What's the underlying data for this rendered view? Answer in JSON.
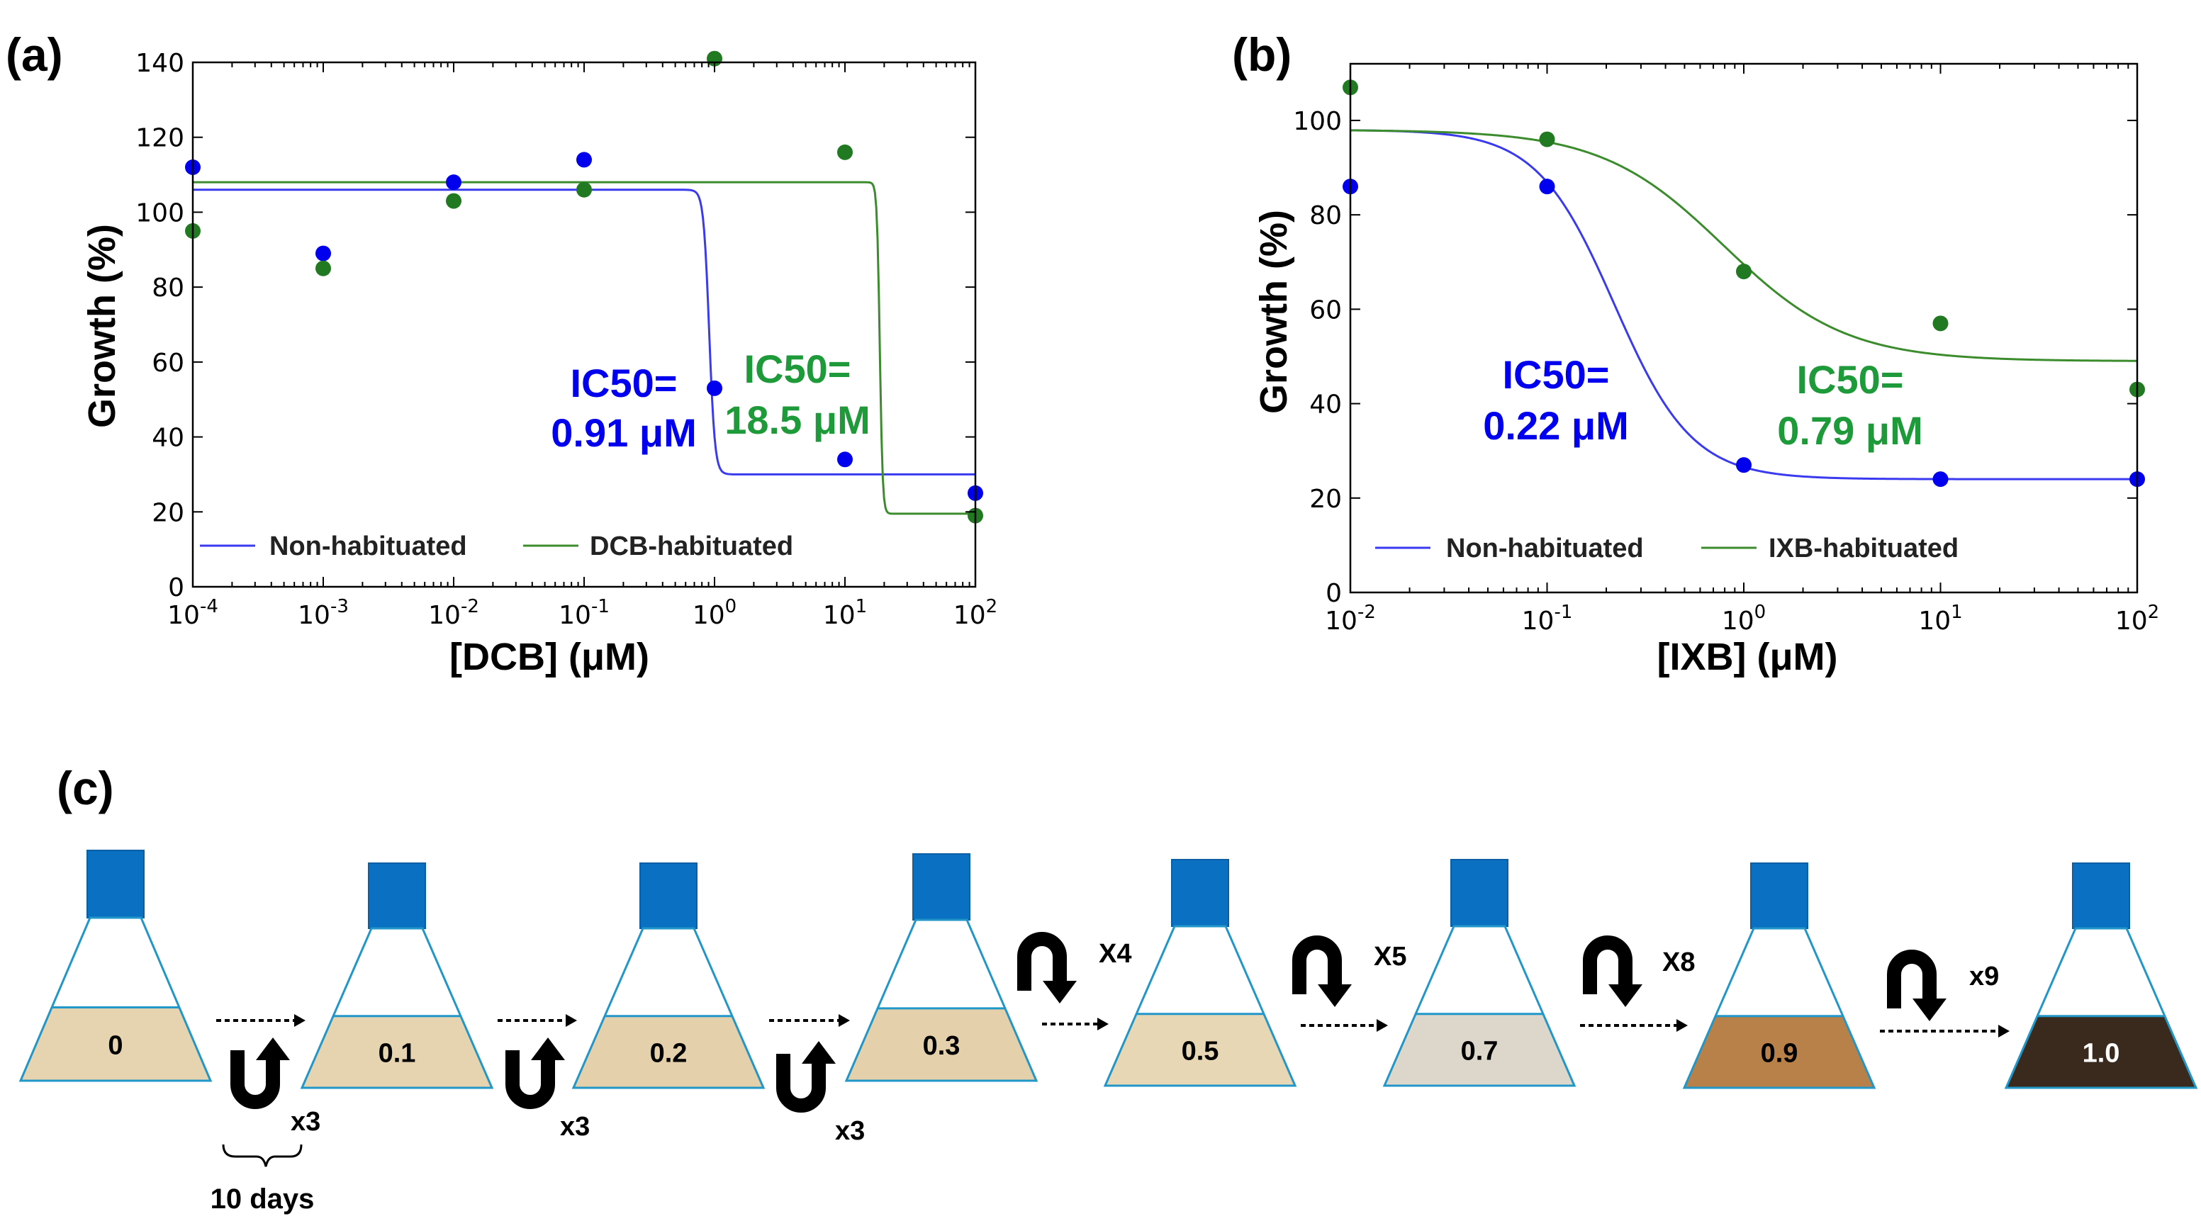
{
  "colors": {
    "blue": "#0000ee",
    "blue_line": "#3a3af0",
    "green": "#1f9a3a",
    "green_point": "#217a21",
    "green_line": "#3c8c2e",
    "flask_cap": "#0a70c2",
    "flask_outline": "#2196c8"
  },
  "panel_a": {
    "label": "(a)",
    "ylabel": "Growth (%)",
    "xlabel": "[DCB] (μM)",
    "ic50_blue": {
      "line1": "IC50=",
      "line2": "0.91 μM"
    },
    "ic50_green": {
      "line1": "IC50=",
      "line2": "18.5 μM"
    },
    "legend": [
      "Non-habituated",
      "DCB-habituated"
    ]
  },
  "panel_b": {
    "label": "(b)",
    "ylabel": "Growth (%)",
    "xlabel": "[IXB] (μM)",
    "ic50_blue": {
      "line1": "IC50=",
      "line2": "0.22 μM"
    },
    "ic50_green": {
      "line1": "IC50=",
      "line2": "0.79 μM"
    },
    "legend": [
      "Non-habituated",
      "IXB-habituated"
    ]
  },
  "chart_data": [
    {
      "type": "scatter",
      "title": "",
      "xlabel": "[DCB] (μM)",
      "ylabel": "Growth (%)",
      "xscale": "log",
      "xlim": [
        0.0001,
        100
      ],
      "ylim": [
        0,
        140
      ],
      "yticks": [
        0,
        20,
        40,
        60,
        80,
        100,
        120,
        140
      ],
      "xticks": [
        {
          "value": 0.0001,
          "base": "10",
          "exp": "-4"
        },
        {
          "value": 0.001,
          "base": "10",
          "exp": "-3"
        },
        {
          "value": 0.01,
          "base": "10",
          "exp": "-2"
        },
        {
          "value": 0.1,
          "base": "10",
          "exp": "-1"
        },
        {
          "value": 1,
          "base": "10",
          "exp": "0"
        },
        {
          "value": 10,
          "base": "10",
          "exp": "1"
        },
        {
          "value": 100,
          "base": "10",
          "exp": "2"
        }
      ],
      "legend_position": "bottom",
      "series": [
        {
          "name": "Non-habituated",
          "points": {
            "x": [
              0.0001,
              0.001,
              0.01,
              0.1,
              1,
              10,
              100
            ],
            "y": [
              112,
              89,
              108,
              114,
              53,
              34,
              25
            ]
          },
          "fit": {
            "top": 106,
            "bottom": 30,
            "ic50": 0.91,
            "hill": 20
          }
        },
        {
          "name": "DCB-habituated",
          "points": {
            "x": [
              0.0001,
              0.001,
              0.01,
              0.1,
              1,
              10,
              100
            ],
            "y": [
              95,
              85,
              103,
              106,
              141,
              116,
              19
            ]
          },
          "fit": {
            "top": 108,
            "bottom": 19.5,
            "ic50": 18.5,
            "hill": 40
          }
        }
      ]
    },
    {
      "type": "scatter",
      "title": "",
      "xlabel": "[IXB] (μM)",
      "ylabel": "Growth (%)",
      "xscale": "log",
      "xlim": [
        0.01,
        100
      ],
      "ylim": [
        0,
        112
      ],
      "yticks": [
        0,
        20,
        40,
        60,
        80,
        100
      ],
      "xticks": [
        {
          "value": 0.01,
          "base": "10",
          "exp": "-2"
        },
        {
          "value": 0.1,
          "base": "10",
          "exp": "-1"
        },
        {
          "value": 1,
          "base": "10",
          "exp": "0"
        },
        {
          "value": 10,
          "base": "10",
          "exp": "1"
        },
        {
          "value": 100,
          "base": "10",
          "exp": "2"
        }
      ],
      "legend_position": "bottom",
      "series": [
        {
          "name": "Non-habituated",
          "points": {
            "x": [
              0.01,
              0.1,
              1,
              10,
              100
            ],
            "y": [
              86,
              86,
              27,
              24,
              24
            ]
          },
          "fit": {
            "top": 98,
            "bottom": 24,
            "ic50": 0.22,
            "hill": 2.2
          }
        },
        {
          "name": "IXB-habituated",
          "points": {
            "x": [
              0.01,
              0.1,
              1,
              10,
              100
            ],
            "y": [
              107,
              96,
              68,
              57,
              43
            ]
          },
          "fit": {
            "top": 98,
            "bottom": 49,
            "ic50": 0.79,
            "hill": 1.4
          }
        }
      ]
    }
  ],
  "panel_c": {
    "label": "(c)",
    "flasks": [
      {
        "value": "0",
        "soil": "#e6d4b0"
      },
      {
        "value": "0.1",
        "soil": "#e6d4b0"
      },
      {
        "value": "0.2",
        "soil": "#e4d0aa"
      },
      {
        "value": "0.3",
        "soil": "#e4d0aa"
      },
      {
        "value": "0.5",
        "soil": "#e8d7b4"
      },
      {
        "value": "0.7",
        "soil": "#dcd6cb"
      },
      {
        "value": "0.9",
        "soil": "#b8814a"
      },
      {
        "value": "1.0",
        "soil": "#3a2a1e"
      }
    ],
    "cycles": [
      "x3",
      "x3",
      "x3",
      "X4",
      "X5",
      "X8",
      "x9"
    ],
    "duration": "10 days"
  }
}
